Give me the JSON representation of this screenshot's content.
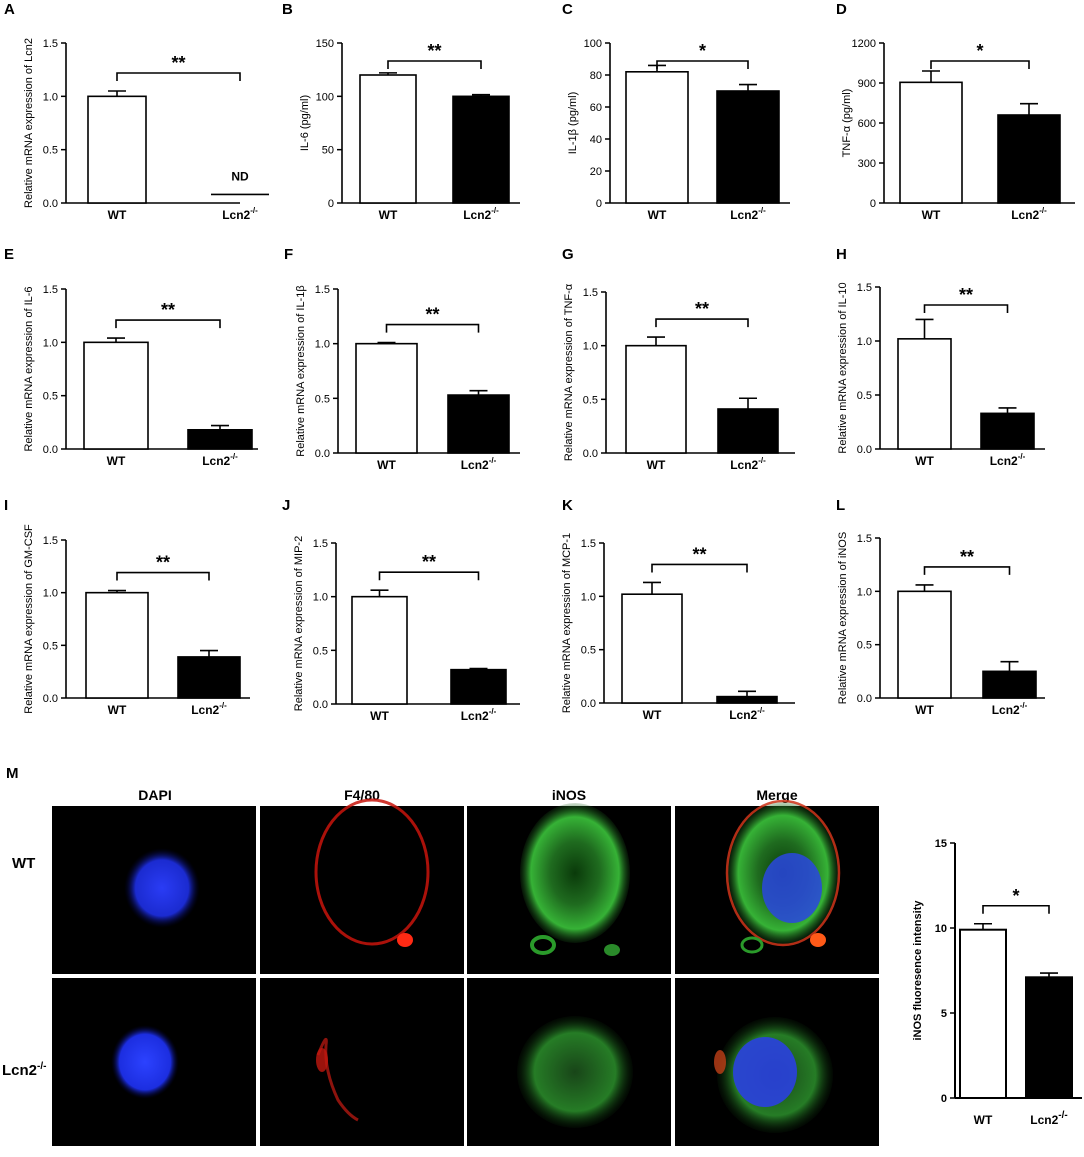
{
  "chart_data": [
    {
      "panel": "A",
      "type": "bar",
      "categories": [
        "WT",
        "Lcn2"
      ],
      "cat2_sup": "-/-",
      "values": [
        1.0,
        0.08
      ],
      "errors": [
        0.05,
        0
      ],
      "ylabel": "Relative mRNA expression of Lcn2",
      "ylim": [
        0,
        1.5
      ],
      "yticks": [
        "0.0",
        "0.5",
        "1.0",
        "1.5"
      ],
      "significance": "**",
      "annotation": "ND"
    },
    {
      "panel": "B",
      "type": "bar",
      "categories": [
        "WT",
        "Lcn2"
      ],
      "cat2_sup": "-/-",
      "values": [
        120,
        100
      ],
      "errors": [
        2,
        1.5
      ],
      "ylabel": "IL-6 (pg/ml)",
      "ylim": [
        0,
        150
      ],
      "yticks": [
        "0",
        "50",
        "100",
        "150"
      ],
      "significance": "**"
    },
    {
      "panel": "C",
      "type": "bar",
      "categories": [
        "WT",
        "Lcn2"
      ],
      "cat2_sup": "-/-",
      "values": [
        82,
        70
      ],
      "errors": [
        4,
        4
      ],
      "ylabel": "IL-1β (pg/ml)",
      "ylim": [
        0,
        100
      ],
      "yticks": [
        "0",
        "20",
        "40",
        "60",
        "80",
        "100"
      ],
      "significance": "*"
    },
    {
      "panel": "D",
      "type": "bar",
      "categories": [
        "WT",
        "Lcn2"
      ],
      "cat2_sup": "-/-",
      "values": [
        905,
        660
      ],
      "errors": [
        85,
        85
      ],
      "ylabel": "TNF-α (pg/ml)",
      "ylim": [
        0,
        1200
      ],
      "yticks": [
        "0",
        "300",
        "600",
        "900",
        "1200"
      ],
      "significance": "*"
    },
    {
      "panel": "E",
      "type": "bar",
      "categories": [
        "WT",
        "Lcn2"
      ],
      "cat2_sup": "-/-",
      "values": [
        1.0,
        0.18
      ],
      "errors": [
        0.04,
        0.04
      ],
      "ylabel": "Relative mRNA expression of IL-6",
      "ylim": [
        0,
        1.5
      ],
      "yticks": [
        "0.0",
        "0.5",
        "1.0",
        "1.5"
      ],
      "significance": "**"
    },
    {
      "panel": "F",
      "type": "bar",
      "categories": [
        "WT",
        "Lcn2"
      ],
      "cat2_sup": "-/-",
      "values": [
        1.0,
        0.53
      ],
      "errors": [
        0.01,
        0.04
      ],
      "ylabel": "Relative mRNA expression of IL-1β",
      "ylim": [
        0,
        1.5
      ],
      "yticks": [
        "0.0",
        "0.5",
        "1.0",
        "1.5"
      ],
      "significance": "**"
    },
    {
      "panel": "G",
      "type": "bar",
      "categories": [
        "WT",
        "Lcn2"
      ],
      "cat2_sup": "-/-",
      "values": [
        1.0,
        0.41
      ],
      "errors": [
        0.08,
        0.1
      ],
      "ylabel": "Relative mRNA expression of TNF-α",
      "ylim": [
        0,
        1.5
      ],
      "yticks": [
        "0.0",
        "0.5",
        "1.0",
        "1.5"
      ],
      "significance": "**"
    },
    {
      "panel": "H",
      "type": "bar",
      "categories": [
        "WT",
        "Lcn2"
      ],
      "cat2_sup": "-/-",
      "values": [
        1.02,
        0.33
      ],
      "errors": [
        0.18,
        0.05
      ],
      "ylabel": "Relative mRNA expression of IL-10",
      "ylim": [
        0,
        1.5
      ],
      "yticks": [
        "0.0",
        "0.5",
        "1.0",
        "1.5"
      ],
      "significance": "**"
    },
    {
      "panel": "I",
      "type": "bar",
      "categories": [
        "WT",
        "Lcn2"
      ],
      "cat2_sup": "-/-",
      "values": [
        1.0,
        0.39
      ],
      "errors": [
        0.02,
        0.06
      ],
      "ylabel": "Relative mRNA expression of GM-CSF",
      "ylim": [
        0,
        1.5
      ],
      "yticks": [
        "0.0",
        "0.5",
        "1.0",
        "1.5"
      ],
      "significance": "**"
    },
    {
      "panel": "J",
      "type": "bar",
      "categories": [
        "WT",
        "Lcn2"
      ],
      "cat2_sup": "-/-",
      "values": [
        1.0,
        0.32
      ],
      "errors": [
        0.06,
        0.01
      ],
      "ylabel": "Relative mRNA expression of MIP-2",
      "ylim": [
        0,
        1.5
      ],
      "yticks": [
        "0.0",
        "0.5",
        "1.0",
        "1.5"
      ],
      "significance": "**"
    },
    {
      "panel": "K",
      "type": "bar",
      "categories": [
        "WT",
        "Lcn2"
      ],
      "cat2_sup": "-/-",
      "values": [
        1.02,
        0.06
      ],
      "errors": [
        0.11,
        0.05
      ],
      "ylabel": "Relative mRNA expression of MCP-1",
      "ylim": [
        0,
        1.5
      ],
      "yticks": [
        "0.0",
        "0.5",
        "1.0",
        "1.5"
      ],
      "significance": "**"
    },
    {
      "panel": "L",
      "type": "bar",
      "categories": [
        "WT",
        "Lcn2"
      ],
      "cat2_sup": "-/-",
      "values": [
        1.0,
        0.25
      ],
      "errors": [
        0.06,
        0.09
      ],
      "ylabel": "Relative mRNA expression of iNOS",
      "ylim": [
        0,
        1.5
      ],
      "yticks": [
        "0.0",
        "0.5",
        "1.0",
        "1.5"
      ],
      "significance": "**"
    },
    {
      "panel": "M",
      "type": "bar",
      "categories": [
        "WT",
        "Lcn2"
      ],
      "cat2_sup": "-/-",
      "values": [
        9.9,
        7.1
      ],
      "errors": [
        0.35,
        0.25
      ],
      "ylabel": "iNOS fluoresence intensity",
      "ylim": [
        0,
        15
      ],
      "yticks": [
        "0",
        "5",
        "10",
        "15"
      ],
      "significance": "*"
    }
  ],
  "styles": {
    "bar_wt_fill": "#ffffff",
    "bar_ko_fill": "#000000",
    "stroke": "#000000"
  },
  "microscopy": {
    "panel_letter": "M",
    "columns": [
      "DAPI",
      "F4/80",
      "iNOS",
      "Merge"
    ],
    "rows": [
      "WT",
      "Lcn2"
    ],
    "row2_sup": "-/-",
    "colors": {
      "dapi": "#1f33e6",
      "f480": "#e01a12",
      "inos": "#2fa82f",
      "background": "#000000"
    }
  }
}
